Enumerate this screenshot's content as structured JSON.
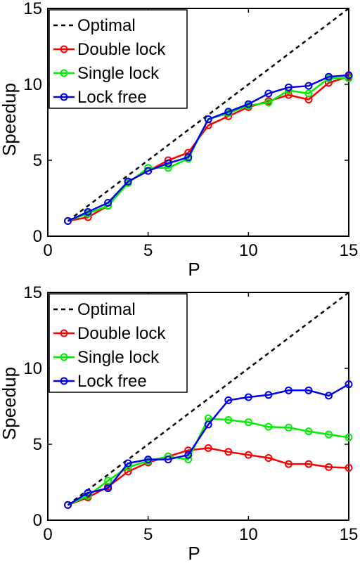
{
  "chart_data": [
    {
      "type": "line",
      "xlabel": "P",
      "ylabel": "Speedup",
      "xlim": [
        0,
        15
      ],
      "ylim": [
        0,
        15
      ],
      "xticks": [
        "0",
        "5",
        "10",
        "15"
      ],
      "yticks": [
        "0",
        "5",
        "10",
        "15"
      ],
      "grid": false,
      "legend_position": "top-left",
      "x": [
        1,
        2,
        3,
        4,
        5,
        6,
        7,
        8,
        9,
        10,
        11,
        12,
        13,
        14,
        15
      ],
      "series": [
        {
          "name": "Optimal",
          "color": "#000000",
          "style": "dashed",
          "marker": "none",
          "values": [
            1,
            2,
            3,
            4,
            5,
            6,
            7,
            8,
            9,
            10,
            11,
            12,
            13,
            14,
            15
          ]
        },
        {
          "name": "Double lock",
          "color": "#ff0000",
          "style": "solid",
          "marker": "circle",
          "values": [
            1.0,
            1.25,
            2.0,
            3.6,
            4.3,
            5.0,
            5.5,
            7.3,
            7.9,
            8.5,
            8.9,
            9.3,
            9.0,
            10.1,
            10.5
          ]
        },
        {
          "name": "Single lock",
          "color": "#00ee00",
          "style": "solid",
          "marker": "circle",
          "values": [
            1.0,
            1.5,
            2.0,
            3.5,
            4.5,
            4.5,
            5.1,
            7.7,
            8.1,
            8.6,
            8.8,
            9.6,
            9.4,
            10.4,
            10.4
          ]
        },
        {
          "name": "Lock free",
          "color": "#0000ee",
          "style": "solid",
          "marker": "circle",
          "values": [
            1.0,
            1.6,
            2.2,
            3.6,
            4.3,
            4.8,
            5.2,
            7.7,
            8.2,
            8.7,
            9.4,
            9.8,
            9.9,
            10.5,
            10.6
          ]
        }
      ]
    },
    {
      "type": "line",
      "xlabel": "P",
      "ylabel": "Speedup",
      "xlim": [
        0,
        15
      ],
      "ylim": [
        0,
        15
      ],
      "xticks": [
        "0",
        "5",
        "10",
        "15"
      ],
      "yticks": [
        "0",
        "5",
        "10",
        "15"
      ],
      "grid": false,
      "legend_position": "top-left",
      "x": [
        1,
        2,
        3,
        4,
        5,
        6,
        7,
        8,
        9,
        10,
        11,
        12,
        13,
        14,
        15
      ],
      "series": [
        {
          "name": "Optimal",
          "color": "#000000",
          "style": "dashed",
          "marker": "none",
          "values": [
            1,
            2,
            3,
            4,
            5,
            6,
            7,
            8,
            9,
            10,
            11,
            12,
            13,
            14,
            15
          ]
        },
        {
          "name": "Double lock",
          "color": "#ff0000",
          "style": "solid",
          "marker": "circle",
          "values": [
            1.0,
            1.5,
            2.2,
            3.2,
            3.8,
            4.2,
            4.6,
            4.75,
            4.5,
            4.3,
            4.1,
            3.7,
            3.7,
            3.5,
            3.45
          ]
        },
        {
          "name": "Single lock",
          "color": "#00ee00",
          "style": "solid",
          "marker": "circle",
          "values": [
            1.0,
            1.6,
            2.6,
            3.5,
            3.9,
            4.2,
            4.0,
            6.7,
            6.6,
            6.45,
            6.15,
            6.1,
            5.85,
            5.65,
            5.45
          ]
        },
        {
          "name": "Lock free",
          "color": "#0000ee",
          "style": "solid",
          "marker": "circle",
          "values": [
            1.0,
            1.8,
            2.1,
            3.75,
            4.0,
            4.0,
            4.3,
            6.3,
            7.9,
            8.1,
            8.25,
            8.55,
            8.55,
            8.2,
            8.95
          ]
        }
      ]
    }
  ]
}
